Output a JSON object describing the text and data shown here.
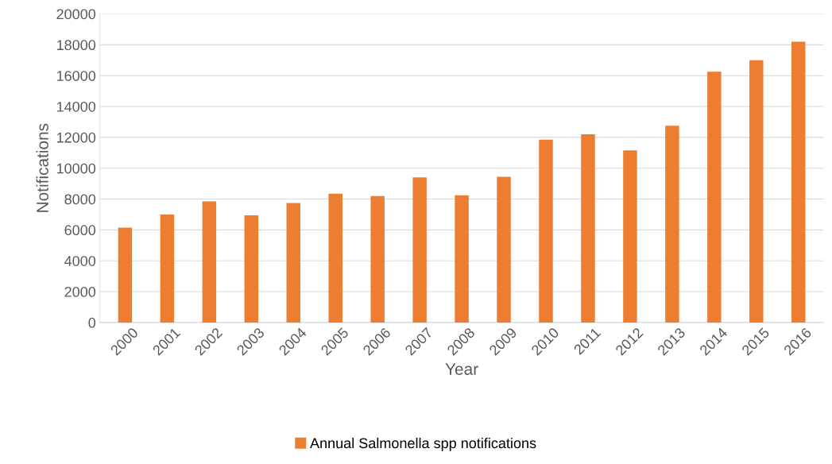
{
  "chart_data": {
    "type": "bar",
    "xlabel": "Year",
    "ylabel": "Notifications",
    "categories": [
      "2000",
      "2001",
      "2002",
      "2003",
      "2004",
      "2005",
      "2006",
      "2007",
      "2008",
      "2009",
      "2010",
      "2011",
      "2012",
      "2013",
      "2014",
      "2015",
      "2016"
    ],
    "series": [
      {
        "name": "Annual Salmonella spp notifications",
        "color": "#ed7d31",
        "values": [
          6150,
          7000,
          7850,
          6950,
          7750,
          8350,
          8200,
          9400,
          8250,
          9450,
          11850,
          12200,
          11150,
          12750,
          16250,
          17000,
          18200
        ]
      }
    ],
    "ylim": [
      0,
      20000
    ],
    "yticks": [
      0,
      2000,
      4000,
      6000,
      8000,
      10000,
      12000,
      14000,
      16000,
      18000,
      20000
    ],
    "grid": "y",
    "legend": "bottom"
  }
}
